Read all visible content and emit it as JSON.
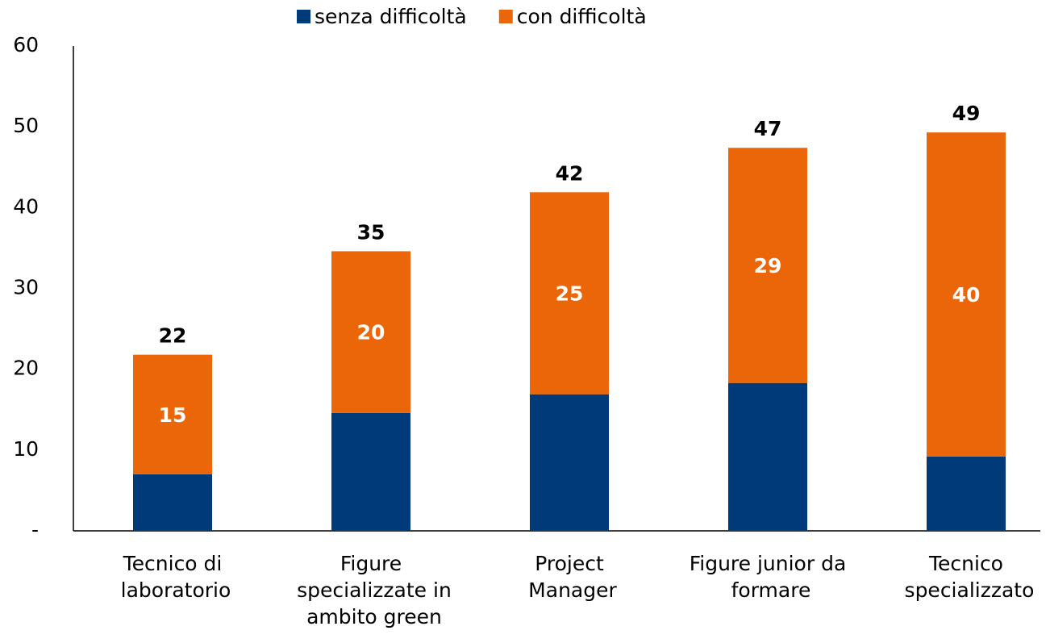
{
  "chart_data": {
    "type": "stacked_bar",
    "categories": [
      "Tecnico di\nlaboratorio",
      "Figure\nspecializzate in\nambito green",
      "Project\nManager",
      "Figure junior da\nformare",
      "Tecnico\nspecializzato"
    ],
    "series": [
      {
        "name": "senza difficoltà",
        "color": "#003a78",
        "values": [
          7,
          14.6,
          16.9,
          18.3,
          9.2
        ]
      },
      {
        "name": "con difficoltà",
        "color": "#eb6608",
        "values": [
          14.8,
          20,
          25,
          29.1,
          40.1
        ],
        "value_labels": [
          "15",
          "20",
          "25",
          "29",
          "40"
        ]
      }
    ],
    "totals": [
      22,
      35,
      42,
      47,
      49
    ],
    "ylim": [
      0,
      60
    ],
    "yticks": [
      {
        "value": 0,
        "label": "-"
      },
      10,
      20,
      30,
      40,
      50,
      60
    ],
    "grid": false,
    "legend": "top"
  }
}
